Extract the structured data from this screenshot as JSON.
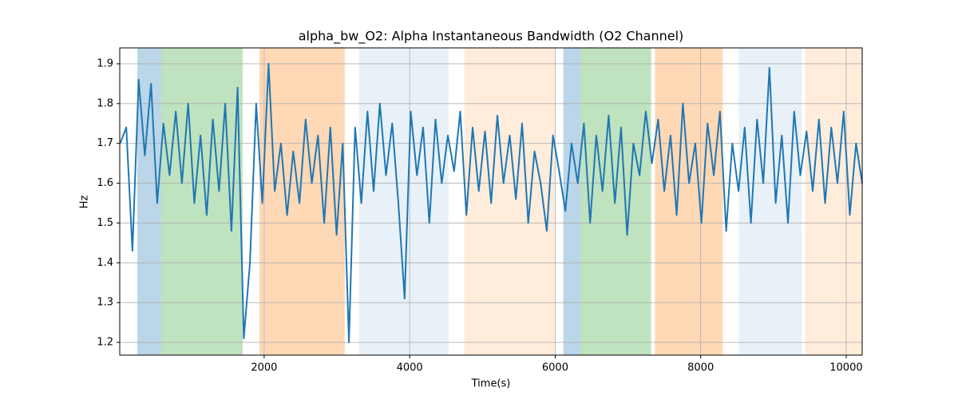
{
  "chart_data": {
    "type": "line",
    "title": "alpha_bw_O2: Alpha Instantaneous Bandwidth (O2 Channel)",
    "x_label": "Time(s)",
    "y_label": "Hz",
    "xlim": [
      15,
      10220
    ],
    "ylim": [
      1.168,
      1.94
    ],
    "xticks": [
      2000,
      4000,
      6000,
      8000,
      10000
    ],
    "yticks": [
      1.2,
      1.3,
      1.4,
      1.5,
      1.6,
      1.7,
      1.8,
      1.9
    ],
    "grid": true,
    "spans": [
      {
        "start": 256,
        "end": 585,
        "color": "#1f77b4",
        "opacity": 0.3
      },
      {
        "start": 585,
        "end": 1704,
        "color": "#2ca02c",
        "opacity": 0.3
      },
      {
        "start": 1934,
        "end": 3107,
        "color": "#ff7f0e",
        "opacity": 0.3
      },
      {
        "start": 3304,
        "end": 4533,
        "color": "#1f77b4",
        "opacity": 0.1
      },
      {
        "start": 4752,
        "end": 6002,
        "color": "#ff7f0e",
        "opacity": 0.15
      },
      {
        "start": 6111,
        "end": 6353,
        "color": "#1f77b4",
        "opacity": 0.3
      },
      {
        "start": 6353,
        "end": 7318,
        "color": "#2ca02c",
        "opacity": 0.3
      },
      {
        "start": 7372,
        "end": 8304,
        "color": "#ff7f0e",
        "opacity": 0.3
      },
      {
        "start": 8524,
        "end": 9390,
        "color": "#1f77b4",
        "opacity": 0.1
      },
      {
        "start": 9434,
        "end": 10220,
        "color": "#ff7f0e",
        "opacity": 0.15
      }
    ],
    "series": [
      {
        "color": "#1f77b4",
        "x": [
          20,
          105,
          190,
          275,
          360,
          445,
          530,
          615,
          700,
          785,
          870,
          955,
          1040,
          1125,
          1210,
          1295,
          1380,
          1465,
          1550,
          1635,
          1720,
          1805,
          1890,
          1975,
          2060,
          2145,
          2230,
          2315,
          2400,
          2485,
          2570,
          2655,
          2740,
          2825,
          2910,
          2995,
          3080,
          3165,
          3250,
          3335,
          3420,
          3505,
          3590,
          3675,
          3760,
          3845,
          3930,
          4015,
          4100,
          4185,
          4270,
          4355,
          4440,
          4525,
          4610,
          4695,
          4780,
          4865,
          4950,
          5035,
          5120,
          5205,
          5290,
          5375,
          5460,
          5545,
          5630,
          5715,
          5800,
          5885,
          5970,
          6055,
          6140,
          6225,
          6310,
          6395,
          6480,
          6565,
          6650,
          6735,
          6820,
          6905,
          6990,
          7075,
          7160,
          7245,
          7330,
          7415,
          7500,
          7585,
          7670,
          7755,
          7840,
          7925,
          8010,
          8095,
          8180,
          8265,
          8350,
          8435,
          8520,
          8605,
          8690,
          8775,
          8860,
          8945,
          9030,
          9115,
          9200,
          9285,
          9370,
          9455,
          9540,
          9625,
          9710,
          9795,
          9880,
          9965,
          10050,
          10135,
          10220
        ],
        "values": [
          1.7,
          1.74,
          1.43,
          1.86,
          1.67,
          1.85,
          1.55,
          1.75,
          1.62,
          1.78,
          1.6,
          1.8,
          1.55,
          1.72,
          1.52,
          1.76,
          1.58,
          1.8,
          1.48,
          1.84,
          1.21,
          1.4,
          1.8,
          1.55,
          1.9,
          1.58,
          1.7,
          1.52,
          1.68,
          1.55,
          1.76,
          1.6,
          1.72,
          1.5,
          1.74,
          1.47,
          1.7,
          1.2,
          1.74,
          1.55,
          1.78,
          1.58,
          1.8,
          1.62,
          1.75,
          1.55,
          1.31,
          1.78,
          1.62,
          1.74,
          1.5,
          1.76,
          1.6,
          1.72,
          1.63,
          1.78,
          1.52,
          1.74,
          1.58,
          1.73,
          1.55,
          1.77,
          1.6,
          1.72,
          1.56,
          1.75,
          1.5,
          1.68,
          1.6,
          1.48,
          1.72,
          1.63,
          1.53,
          1.7,
          1.6,
          1.75,
          1.5,
          1.72,
          1.58,
          1.77,
          1.55,
          1.74,
          1.47,
          1.7,
          1.62,
          1.78,
          1.65,
          1.76,
          1.58,
          1.72,
          1.52,
          1.8,
          1.6,
          1.7,
          1.5,
          1.75,
          1.62,
          1.78,
          1.48,
          1.7,
          1.58,
          1.74,
          1.5,
          1.76,
          1.6,
          1.89,
          1.55,
          1.72,
          1.5,
          1.78,
          1.62,
          1.73,
          1.58,
          1.76,
          1.55,
          1.74,
          1.6,
          1.78,
          1.52,
          1.7,
          1.6
        ]
      }
    ]
  }
}
